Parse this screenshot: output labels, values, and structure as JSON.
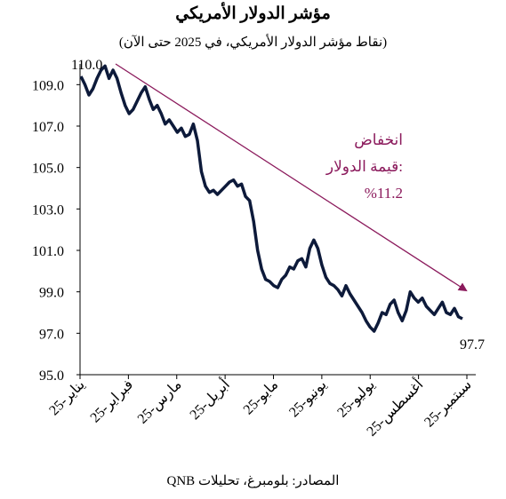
{
  "chart_data": {
    "type": "line",
    "title": "مؤشر الدولار الأمريكي",
    "subtitle": "(نقاط مؤشر الدولار الأمريكي، في 2025 حتى الآن)",
    "source": "المصادر: بلومبرغ، تحليلات QNB",
    "y_ticks": [
      "95.0",
      "97.0",
      "99.0",
      "101.0",
      "103.0",
      "105.0",
      "107.0",
      "109.0"
    ],
    "ylim": [
      95,
      110
    ],
    "x_ticks": [
      "يناير-25",
      "فبراير-25",
      "مارس-25",
      "أبريل-25",
      "مايو-25",
      "يونيو-25",
      "يوليو-25",
      "أغسطس-25",
      "سبتمبر-25"
    ],
    "start_label": "110.0",
    "end_label": "97.7",
    "annotation": [
      "انخفاض",
      "قيمة الدولار:",
      "%11.2"
    ],
    "colors": {
      "line": "#0d1a3a",
      "arrow": "#8b1a5c"
    },
    "series": [
      {
        "values": [
          109.4,
          109.0,
          108.5,
          108.8,
          109.3,
          109.7,
          109.9,
          109.3,
          109.7,
          109.3,
          108.6,
          108.0,
          107.6,
          107.8,
          108.2,
          108.6,
          108.9,
          108.3,
          107.8,
          108.0,
          107.6,
          107.1,
          107.3,
          107.0,
          106.7,
          106.9,
          106.5,
          106.6,
          107.1,
          106.3,
          104.8,
          104.1,
          103.8,
          103.9,
          103.7,
          103.9,
          104.1,
          104.3,
          104.4,
          104.1,
          104.2,
          103.6,
          103.4,
          102.4,
          101.0,
          100.1,
          99.6,
          99.5,
          99.3,
          99.2,
          99.6,
          99.8,
          100.2,
          100.1,
          100.5,
          100.6,
          100.2,
          101.1,
          101.5,
          101.1,
          100.3,
          99.7,
          99.4,
          99.3,
          99.1,
          98.8,
          99.3,
          98.9,
          98.6,
          98.3,
          98.0,
          97.6,
          97.3,
          97.1,
          97.5,
          98.0,
          97.9,
          98.4,
          98.6,
          98.0,
          97.6,
          98.1,
          99.0,
          98.7,
          98.5,
          98.7,
          98.3,
          98.1,
          97.9,
          98.2,
          98.5,
          98.0,
          97.9,
          98.2,
          97.8,
          97.7
        ]
      }
    ]
  }
}
